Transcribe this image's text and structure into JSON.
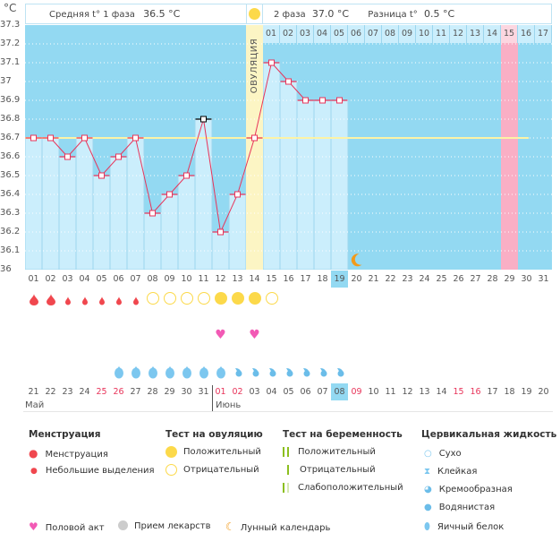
{
  "y_axis": {
    "unit": "°C",
    "ticks": [
      "37.3",
      "37.2",
      "37.1",
      "37",
      "36.9",
      "36.8",
      "36.7",
      "36.6",
      "36.5",
      "36.4",
      "36.3",
      "36.2",
      "36.1",
      "36"
    ]
  },
  "header": {
    "phase1_label": "Средняя t° 1 фаза",
    "phase1_value": "36.5 °C",
    "phase2_label": "2 фаза",
    "phase2_value": "37.0 °C",
    "diff_label": "Разница t°",
    "diff_value": "0.5 °C"
  },
  "ovulation_label": "ОВУЛЯЦИЯ",
  "coverline": 36.7,
  "ovulation_day": 14,
  "highlight_day": 19,
  "expected_period_day": 29,
  "moon_day": 20,
  "colors": {
    "bg": "#93d9f2",
    "bar": "#cbeefc",
    "line": "#e8345a",
    "coverline": "#fdf3a6",
    "ovulation": "#fcf5c4",
    "period": "#f9afc5"
  },
  "cycle_days": [
    "01",
    "02",
    "03",
    "04",
    "05",
    "06",
    "07",
    "08",
    "09",
    "10",
    "11",
    "12",
    "13",
    "14",
    "15",
    "16",
    "17",
    "18",
    "19",
    "20",
    "21",
    "22",
    "23",
    "24",
    "25",
    "26",
    "27",
    "28",
    "29",
    "30",
    "31"
  ],
  "top_dates": [
    "01",
    "02",
    "03",
    "04",
    "05",
    "06",
    "07",
    "08",
    "09",
    "10",
    "11",
    "12",
    "13",
    "14",
    "15",
    "16",
    "17"
  ],
  "temperatures": [
    36.7,
    36.7,
    36.6,
    36.7,
    36.5,
    36.6,
    36.7,
    36.3,
    36.4,
    36.5,
    36.8,
    36.2,
    36.4,
    36.7,
    37.1,
    37.0,
    36.9,
    36.9,
    36.9
  ],
  "excluded_day": 11,
  "menstruation": [
    "heavy",
    "heavy",
    "light",
    "light",
    "light",
    "light",
    "light"
  ],
  "ovulation_tests": {
    "8": "negative",
    "9": "negative",
    "10": "negative",
    "11": "negative",
    "12": "positive",
    "13": "positive",
    "14": "positive",
    "15": "negative"
  },
  "intercourse_days": [
    12,
    14
  ],
  "cervical": {
    "6": "egg-white",
    "7": "egg-white",
    "8": "egg-white",
    "9": "egg-white",
    "10": "egg-white",
    "11": "egg-white",
    "12": "egg-white",
    "13": "creamy",
    "14": "creamy",
    "15": "creamy",
    "16": "creamy",
    "17": "creamy",
    "18": "creamy",
    "19": "creamy"
  },
  "calendar_dates": [
    {
      "d": "21"
    },
    {
      "d": "22"
    },
    {
      "d": "23"
    },
    {
      "d": "24"
    },
    {
      "d": "25",
      "red": true
    },
    {
      "d": "26",
      "red": true
    },
    {
      "d": "27"
    },
    {
      "d": "28"
    },
    {
      "d": "29"
    },
    {
      "d": "30"
    },
    {
      "d": "31"
    },
    {
      "d": "01",
      "red": true
    },
    {
      "d": "02",
      "red": true
    },
    {
      "d": "03"
    },
    {
      "d": "04"
    },
    {
      "d": "05"
    },
    {
      "d": "06"
    },
    {
      "d": "07"
    },
    {
      "d": "08"
    },
    {
      "d": "09",
      "red": true
    },
    {
      "d": "10"
    },
    {
      "d": "11"
    },
    {
      "d": "12"
    },
    {
      "d": "13"
    },
    {
      "d": "14"
    },
    {
      "d": "15",
      "red": true
    },
    {
      "d": "16",
      "red": true
    },
    {
      "d": "17"
    },
    {
      "d": "18"
    },
    {
      "d": "19"
    },
    {
      "d": "20"
    }
  ],
  "months": {
    "may": "Май",
    "june": "Июнь"
  },
  "legend": {
    "menstruation": {
      "title": "Менструация",
      "items": [
        "Менструация",
        "Небольшие выделения"
      ]
    },
    "ovulation_test": {
      "title": "Тест на овуляцию",
      "items": [
        "Положительный",
        "Отрицательный"
      ]
    },
    "pregnancy_test": {
      "title": "Тест на беременность",
      "items": [
        "Положительный",
        "Отрицательный",
        "Слабоположительный"
      ]
    },
    "cervical": {
      "title": "Цервикальная жидкость",
      "items": [
        "Сухо",
        "Клейкая",
        "Кремообразная",
        "Водянистая",
        "Яичный белок"
      ]
    },
    "other": [
      "Половой акт",
      "Прием лекарств",
      "Лунный календарь"
    ]
  }
}
